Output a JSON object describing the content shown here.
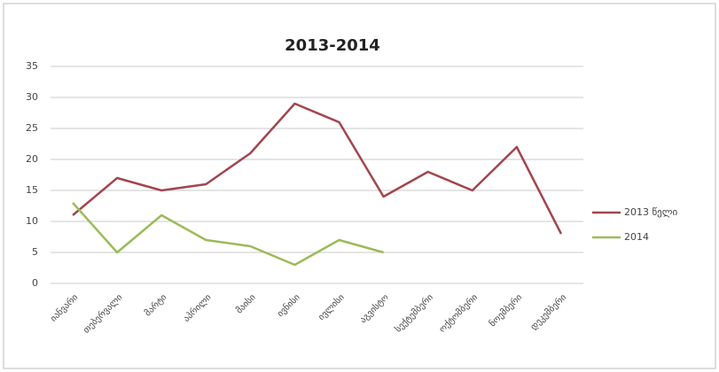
{
  "chart_data": {
    "type": "line",
    "title": "2013-2014",
    "categories": [
      "იანვარი",
      "თებერვალი",
      "მარტი",
      "აპრილი",
      "მაისი",
      "ივნისი",
      "ივლისი",
      "აგვისტო",
      "სექტემბერი",
      "ოქტომბერი",
      "ნოემბერი",
      "დეკემბერი"
    ],
    "series": [
      {
        "name": "2013 წელი",
        "color": "#a3454d",
        "values": [
          11,
          17,
          15,
          16,
          21,
          29,
          26,
          14,
          18,
          15,
          22,
          8
        ]
      },
      {
        "name": "2014",
        "color": "#9bbb59",
        "values": [
          13,
          5,
          11,
          7,
          6,
          3,
          7,
          5,
          null,
          null,
          null,
          null
        ]
      }
    ],
    "ylim": [
      0,
      35
    ],
    "yticks": [
      0,
      5,
      10,
      15,
      20,
      25,
      30,
      35
    ],
    "grid": true,
    "legend": "right"
  }
}
